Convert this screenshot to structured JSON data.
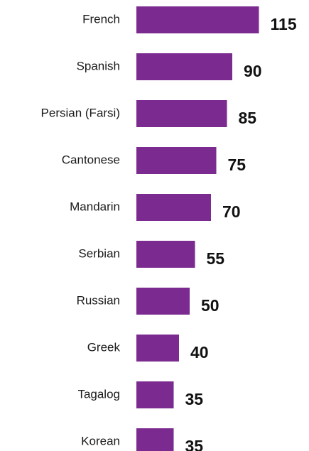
{
  "chart_data": {
    "type": "bar",
    "orientation": "horizontal",
    "categories": [
      "French",
      "Spanish",
      "Persian (Farsi)",
      "Cantonese",
      "Mandarin",
      "Serbian",
      "Russian",
      "Greek",
      "Tagalog",
      "Korean"
    ],
    "values": [
      115,
      90,
      85,
      75,
      70,
      55,
      50,
      40,
      35,
      35
    ],
    "value_labels": [
      "115",
      "90",
      "85",
      "75",
      "70",
      "55",
      "50",
      "40",
      "35",
      "35"
    ],
    "bar_color": "#7b2a8f",
    "grid": false,
    "legend": "none"
  }
}
